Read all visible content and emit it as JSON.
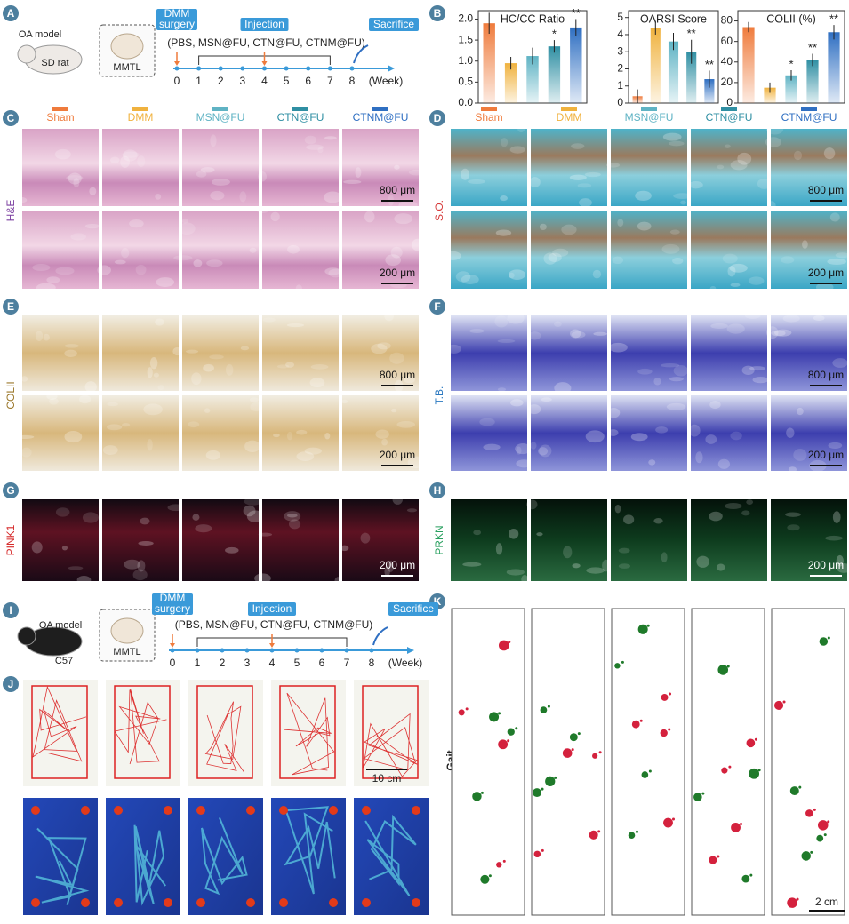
{
  "panel_letters": [
    "A",
    "B",
    "C",
    "D",
    "E",
    "F",
    "G",
    "H",
    "I",
    "J",
    "K"
  ],
  "timeline_rat": {
    "model": "OA model",
    "animal": "SD rat",
    "tissue": "MMTL",
    "surgery_lines": [
      "DMM",
      "surgery"
    ],
    "injection": "Injection",
    "treatments": "(PBS, MSN@FU, CTN@FU, CTNM@FU)",
    "sacrifice": "Sacrifice",
    "weeks": [
      0,
      1,
      2,
      3,
      4,
      5,
      6,
      7,
      8
    ],
    "unit": "(Week)"
  },
  "timeline_mouse": {
    "model": "OA model",
    "animal": "C57",
    "tissue": "MMTL",
    "surgery_lines": [
      "DMM",
      "surgery"
    ],
    "injection": "Injection",
    "treatments": "(PBS, MSN@FU, CTN@FU, CTNM@FU)",
    "sacrifice": "Sacrifice",
    "weeks": [
      0,
      1,
      2,
      3,
      4,
      5,
      6,
      7,
      8
    ],
    "unit": "(Week)"
  },
  "groups": [
    {
      "name": "Sham",
      "color": "#ef7b3c"
    },
    {
      "name": "DMM",
      "color": "#f0b23e"
    },
    {
      "name": "MSN@FU",
      "color": "#5fb3c4"
    },
    {
      "name": "CTN@FU",
      "color": "#2f8fa3"
    },
    {
      "name": "CTNM@FU",
      "color": "#2f6fc2"
    }
  ],
  "panels": {
    "C": {
      "stain": "H&E",
      "color": "#7b3fa0",
      "scale_bars": [
        "800 μm",
        "200 μm"
      ]
    },
    "D": {
      "stain": "S.O.",
      "color": "#d63a3a",
      "scale_bars": [
        "800 μm",
        "200 μm"
      ]
    },
    "E": {
      "stain": "COLII",
      "color": "#9a7628",
      "scale_bars": [
        "800 μm",
        "200 μm"
      ]
    },
    "F": {
      "stain": "T.B.",
      "color": "#2a78c0",
      "scale_bars": [
        "800 μm",
        "200 μm"
      ]
    },
    "G": {
      "stain": "PINK1",
      "color": "#d62a2a",
      "scale_bars": [
        "200 μm"
      ]
    },
    "H": {
      "stain": "PRKN",
      "color": "#2aa060",
      "scale_bars": [
        "200 μm"
      ]
    },
    "J": {
      "scale_bars": [
        "10 cm"
      ]
    },
    "K": {
      "label": "Gait",
      "scale_bars": [
        "2 cm"
      ]
    }
  },
  "chart_data": [
    {
      "type": "bar",
      "title": "HC/CC Ratio",
      "values": [
        1.9,
        0.95,
        1.12,
        1.35,
        1.8
      ],
      "errors": [
        0.25,
        0.15,
        0.2,
        0.15,
        0.2
      ],
      "colors": [
        "#ef7b3c",
        "#f0b23e",
        "#5fb3c4",
        "#2f8fa3",
        "#2f6fc2"
      ],
      "significance": [
        null,
        null,
        null,
        "*",
        "**"
      ],
      "ylim": [
        0,
        2.2
      ],
      "yticks": [
        {
          "value": 0,
          "label": "0.0"
        },
        0.5,
        {
          "value": 1,
          "label": "1.0"
        },
        1.5,
        {
          "value": 2,
          "label": "2.0"
        }
      ]
    },
    {
      "type": "bar",
      "title": "OARSI Score",
      "values": [
        0.4,
        4.4,
        3.6,
        3.0,
        1.4
      ],
      "errors": [
        0.4,
        0.4,
        0.5,
        0.7,
        0.5
      ],
      "colors": [
        "#ef7b3c",
        "#f0b23e",
        "#5fb3c4",
        "#2f8fa3",
        "#2f6fc2"
      ],
      "significance": [
        null,
        null,
        null,
        "**",
        "**"
      ],
      "ylim": [
        0,
        5.4
      ],
      "yticks": [
        0,
        1,
        2,
        3,
        4,
        5
      ]
    },
    {
      "type": "bar",
      "title": "COLII (%)",
      "values": [
        74,
        15,
        27,
        42,
        69
      ],
      "errors": [
        5,
        5,
        5,
        6,
        7
      ],
      "colors": [
        "#ef7b3c",
        "#f0b23e",
        "#5fb3c4",
        "#2f8fa3",
        "#2f6fc2"
      ],
      "significance": [
        null,
        null,
        "*",
        "**",
        "**"
      ],
      "ylim": [
        0,
        90
      ],
      "yticks": [
        0,
        20,
        40,
        60,
        80
      ]
    }
  ]
}
